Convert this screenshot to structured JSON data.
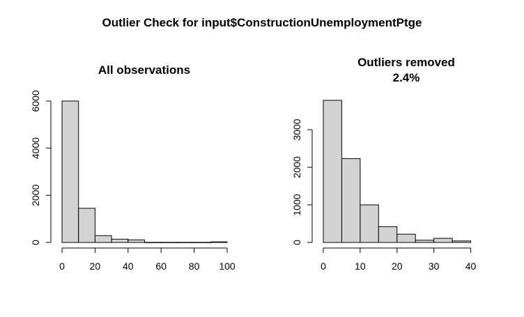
{
  "figure": {
    "title": "Outlier Check for input$ConstructionUnemploymentPtge"
  },
  "chart_data": [
    {
      "type": "bar",
      "title": "All observations",
      "subtitle": "",
      "xlabel": "",
      "ylabel": "",
      "bin_edges": [
        0,
        10,
        20,
        30,
        40,
        50,
        60,
        70,
        80,
        90,
        100
      ],
      "values": [
        6000,
        1450,
        290,
        140,
        110,
        5,
        5,
        5,
        5,
        25
      ],
      "xlim": [
        0,
        100
      ],
      "ylim": [
        0,
        6000
      ],
      "xticks": [
        "0",
        "20",
        "40",
        "60",
        "80",
        "100"
      ],
      "yticks": [
        "0",
        "2000",
        "4000",
        "6000"
      ],
      "grid": false,
      "bar_color": "#d3d3d3"
    },
    {
      "type": "bar",
      "title": "Outliers removed",
      "subtitle": "2.4%",
      "xlabel": "",
      "ylabel": "",
      "bin_edges": [
        0,
        5,
        10,
        15,
        20,
        25,
        30,
        35,
        40
      ],
      "values": [
        3780,
        2230,
        1000,
        420,
        220,
        60,
        110,
        40
      ],
      "xlim": [
        0,
        45
      ],
      "ylim": [
        0,
        3780
      ],
      "xticks": [
        "0",
        "10",
        "20",
        "30",
        "40"
      ],
      "yticks": [
        "0",
        "1000",
        "2000",
        "3000"
      ],
      "grid": false,
      "bar_color": "#d3d3d3"
    }
  ]
}
